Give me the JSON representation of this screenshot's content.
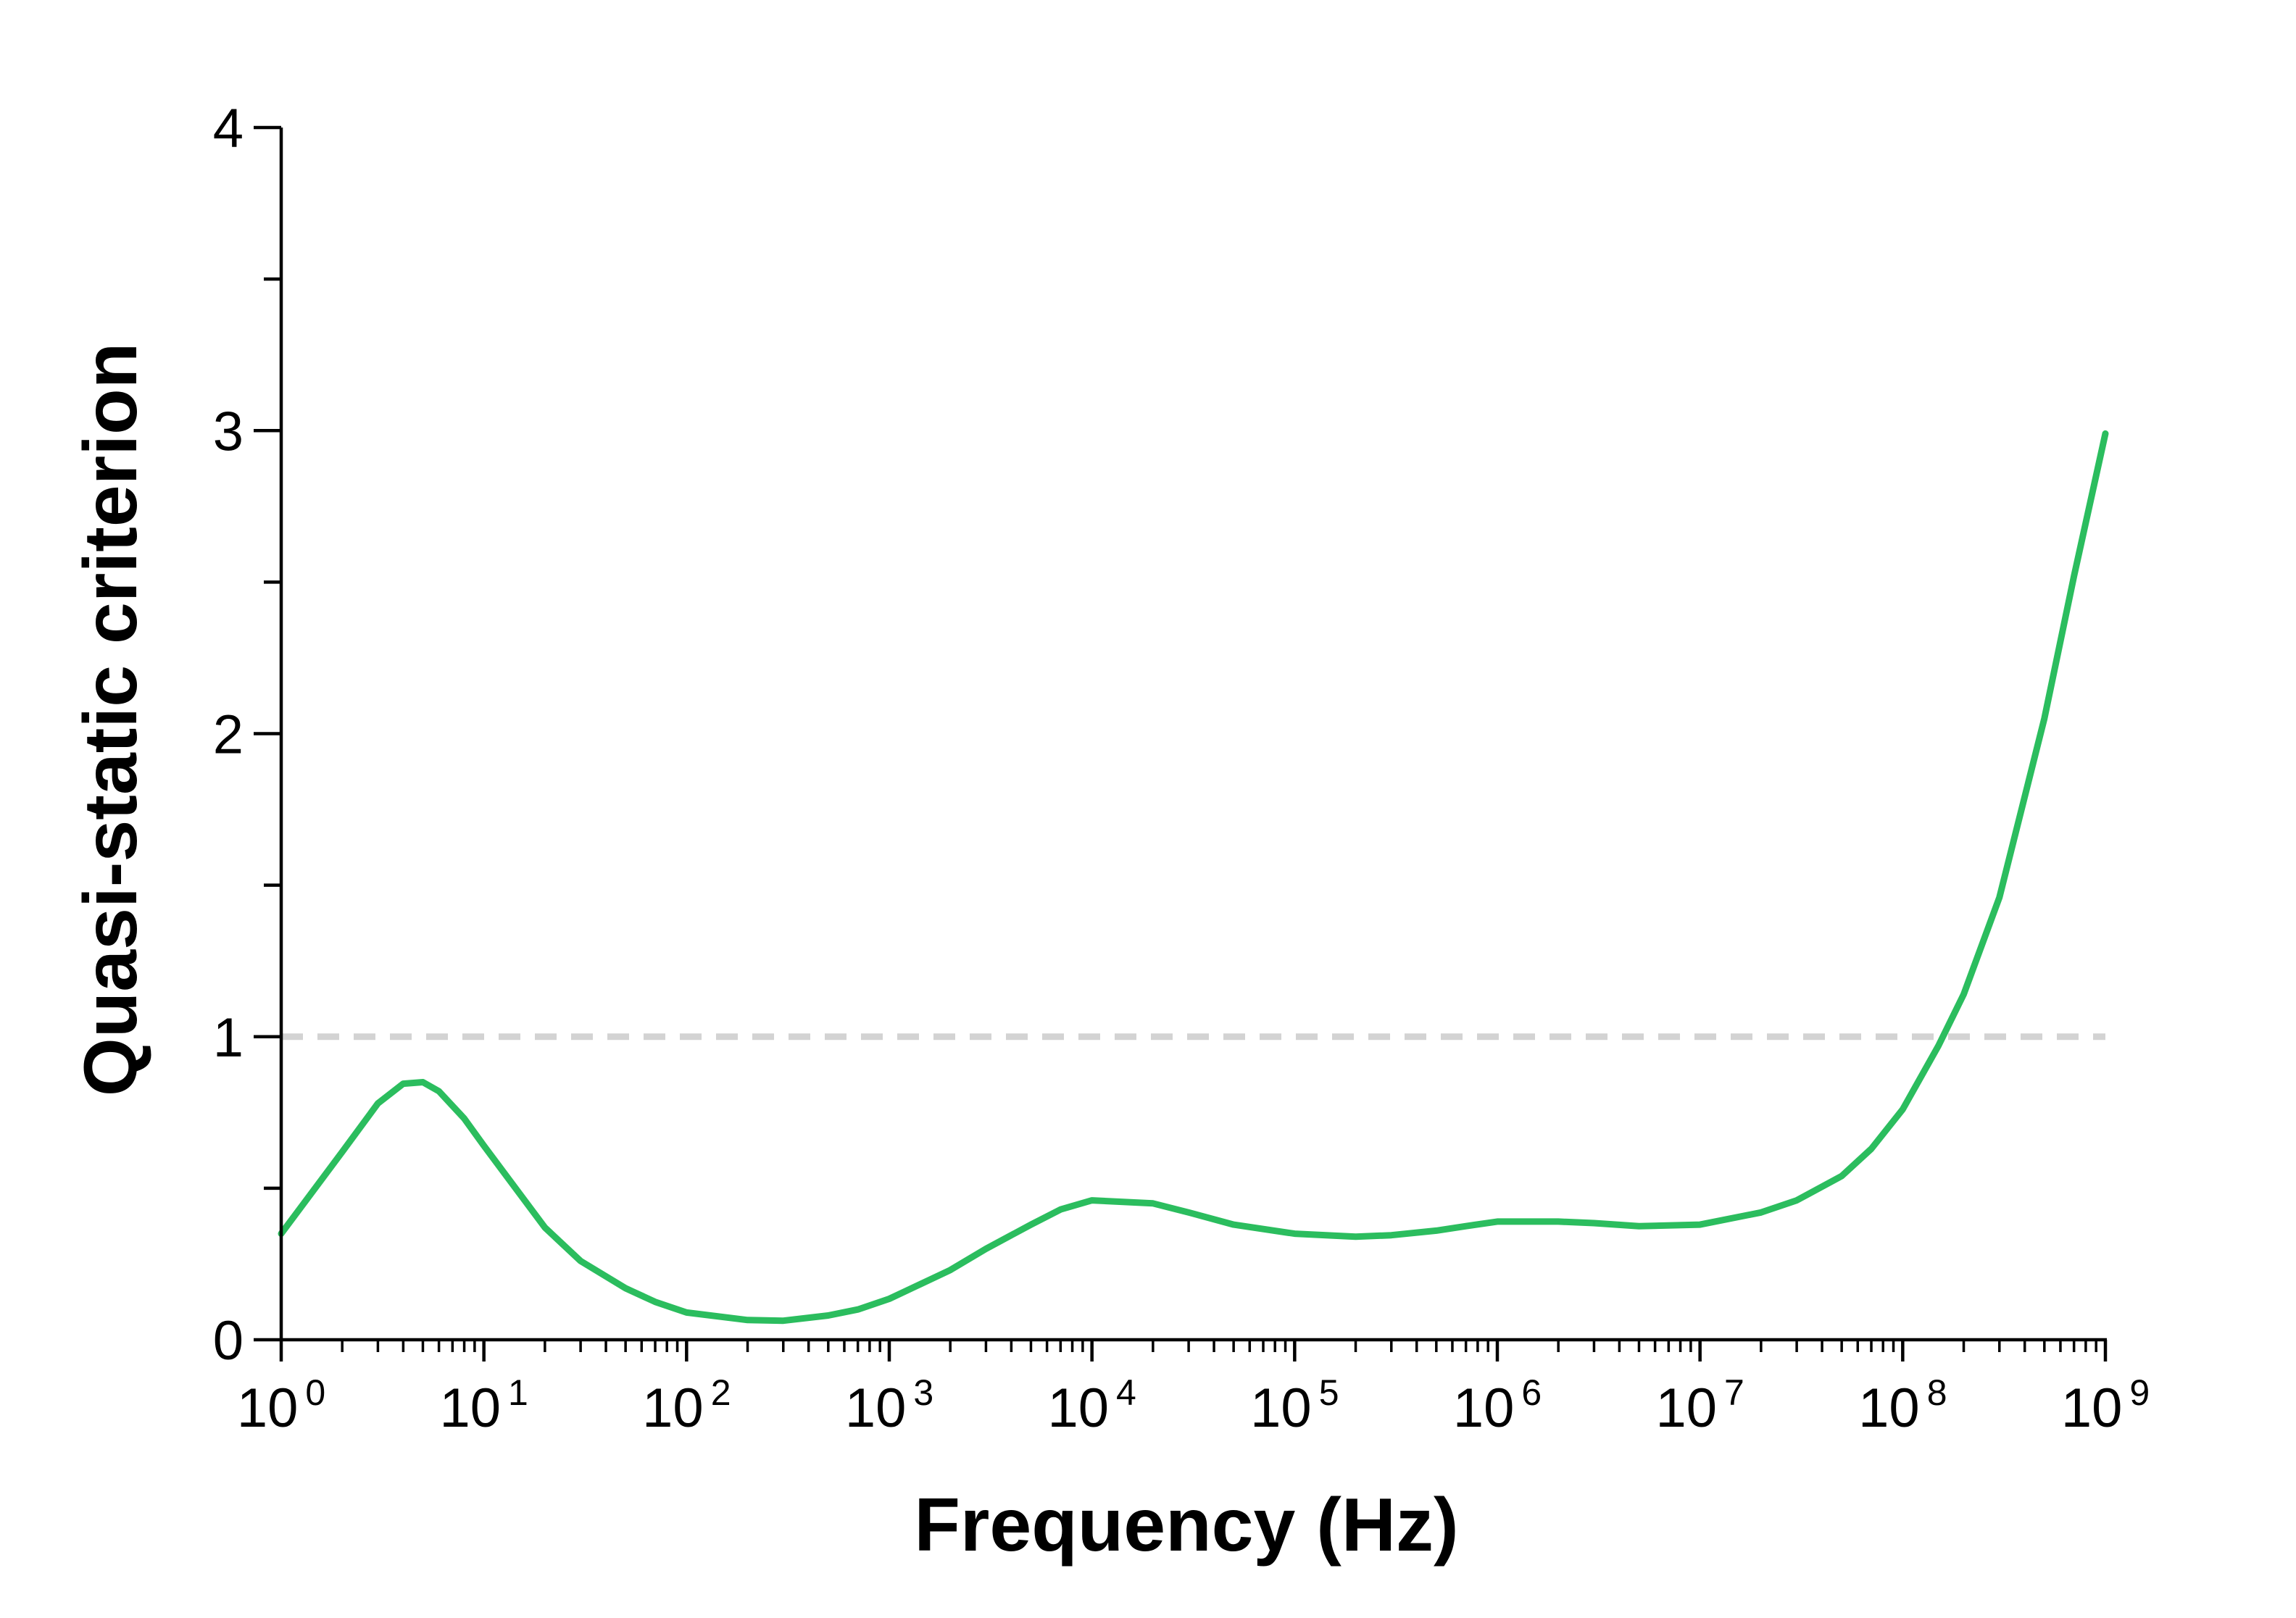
{
  "chart_data": {
    "type": "line",
    "title": "",
    "xlabel": "Frequency (Hz)",
    "ylabel": "Quasi-static criterion",
    "x_scale": "log",
    "xlim": [
      1,
      1000000000
    ],
    "ylim": [
      0,
      4
    ],
    "y_ticks": [
      "0",
      "1",
      "2",
      "3",
      "4"
    ],
    "x_ticks": [
      {
        "base": "10",
        "exp": "0"
      },
      {
        "base": "10",
        "exp": "1"
      },
      {
        "base": "10",
        "exp": "2"
      },
      {
        "base": "10",
        "exp": "3"
      },
      {
        "base": "10",
        "exp": "4"
      },
      {
        "base": "10",
        "exp": "5"
      },
      {
        "base": "10",
        "exp": "6"
      },
      {
        "base": "10",
        "exp": "7"
      },
      {
        "base": "10",
        "exp": "8"
      },
      {
        "base": "10",
        "exp": "9"
      }
    ],
    "grid": false,
    "legend": "none",
    "reference_line": {
      "y": 1,
      "style": "dashed",
      "color": "#d3d3d3"
    },
    "series": [
      {
        "color": "#2bbd5e",
        "x": [
          1,
          2,
          3,
          4,
          5,
          6,
          8,
          10,
          20,
          30,
          50,
          70,
          100,
          200,
          300,
          500,
          700,
          1000,
          2000,
          3000,
          5000,
          7000,
          10000,
          20000,
          30000,
          50000,
          100000,
          200000,
          300000,
          500000,
          700000,
          1000000,
          2000000,
          3000000,
          5000000,
          10000000,
          20000000,
          30000000,
          50000000,
          70000000,
          100000000,
          150000000,
          200000000,
          300000000,
          500000000,
          700000000,
          1000000000
        ],
        "y": [
          0.35,
          0.62,
          0.78,
          0.845,
          0.85,
          0.82,
          0.73,
          0.64,
          0.37,
          0.26,
          0.17,
          0.125,
          0.09,
          0.065,
          0.063,
          0.08,
          0.1,
          0.135,
          0.23,
          0.3,
          0.38,
          0.43,
          0.46,
          0.45,
          0.42,
          0.38,
          0.35,
          0.34,
          0.345,
          0.36,
          0.375,
          0.39,
          0.39,
          0.385,
          0.375,
          0.38,
          0.42,
          0.46,
          0.54,
          0.63,
          0.76,
          0.97,
          1.14,
          1.46,
          2.05,
          2.52,
          2.99
        ]
      }
    ]
  }
}
